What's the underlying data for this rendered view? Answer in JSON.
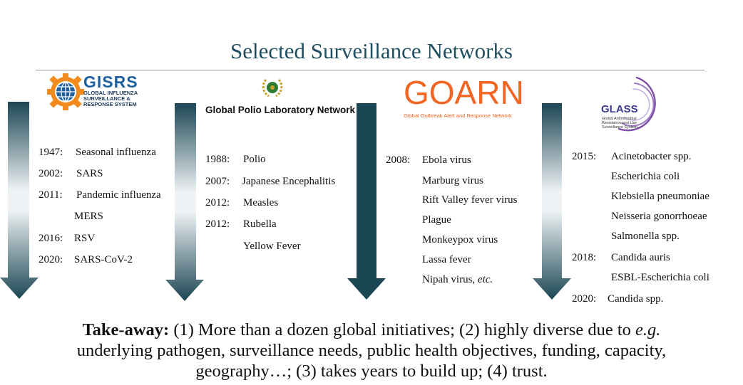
{
  "title": "Selected Surveillance Networks",
  "networks": {
    "gisrs": {
      "logo_big": "GISRS",
      "logo_small": [
        "GLOBAL INFLUENZA",
        "SURVEILLANCE &",
        "RESPONSE SYSTEM"
      ],
      "entries": [
        {
          "year": "1947:",
          "text": "Seasonal influenza"
        },
        {
          "year": "2002:",
          "text": "SARS"
        },
        {
          "year": "2011:",
          "text": "Pandemic influenza"
        },
        {
          "year": "",
          "text": "MERS"
        },
        {
          "year": "2016:",
          "text": "RSV"
        },
        {
          "year": "2020:",
          "text": "SARS-CoV-2"
        }
      ]
    },
    "gpln": {
      "logo_text": "Global Polio Laboratory Network",
      "entries": [
        {
          "year": "1988:",
          "text": "Polio"
        },
        {
          "year": "2007:",
          "text": "Japanese  Encephalitis"
        },
        {
          "year": "2012:",
          "text": "Measles"
        },
        {
          "year": "2012:",
          "text": "Rubella"
        },
        {
          "year": "",
          "text": "Yellow Fever"
        }
      ]
    },
    "goarn": {
      "logo_big": "GOARN",
      "logo_small": "Global Outbreak Alert and Response Network",
      "entries": [
        {
          "year": "2008:",
          "text": "Ebola virus"
        },
        {
          "year": "",
          "text": "Marburg virus"
        },
        {
          "year": "",
          "text": "Rift Valley fever virus"
        },
        {
          "year": "",
          "text": "Plague"
        },
        {
          "year": "",
          "text": "Monkeypox virus"
        },
        {
          "year": "",
          "text": "Lassa fever"
        },
        {
          "year": "",
          "text": "Nipah virus, ",
          "etc": "etc."
        }
      ]
    },
    "glass": {
      "logo_big": "GLASS",
      "logo_small": [
        "Global Antimicrobial",
        "Resistance and Use",
        "Surveillance System"
      ],
      "entries": [
        {
          "year": "2015:",
          "text": "Acinetobacter spp."
        },
        {
          "year": "",
          "text": "Escherichia coli"
        },
        {
          "year": "",
          "text": "Klebsiella pneumoniae"
        },
        {
          "year": "",
          "text": "Neisseria gonorrhoeae"
        },
        {
          "year": "",
          "text": "Salmonella spp."
        },
        {
          "year": "2018:",
          "text": "Candida auris"
        },
        {
          "year": "",
          "text": "ESBL-Escherichia coli"
        },
        {
          "year": "2020:",
          "text": "Candida spp."
        }
      ]
    }
  },
  "takeaway": {
    "label": "Take-away:",
    "line1_a": " (1) More than a dozen global initiatives; (2) highly diverse due to ",
    "line1_eg": "e.g.",
    "line2": "underlying pathogen, surveillance needs, public health objectives, funding, capacity,",
    "line3": "geography…; (3) takes years to build up; (4) trust."
  },
  "colors": {
    "title": "#1f4e5f",
    "arrow_dark": "#1b4654",
    "arrow_light": "#f2f5f7",
    "gisrs_blue": "#1e5fa0",
    "gisrs_orange": "#f28a1e",
    "goarn_orange": "#f26522",
    "glass_purple": "#3b3a8f"
  }
}
